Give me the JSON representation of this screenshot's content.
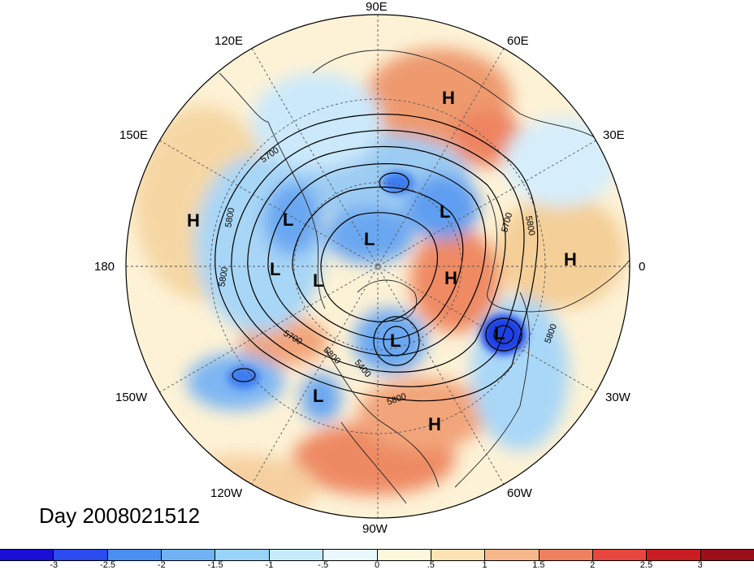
{
  "title": "Day 2008021512",
  "longitude_labels": {
    "lon_90E": "90E",
    "lon_60E": "60E",
    "lon_120E": "120E",
    "lon_150E": "150E",
    "lon_30E": "30E",
    "lon_180": "180",
    "lon_0": "0",
    "lon_150W": "150W",
    "lon_30W": "30W",
    "lon_120W": "120W",
    "lon_60W": "60W",
    "lon_90W": "90W"
  },
  "pressure_centers": [
    {
      "label": "H",
      "name": "high-asia"
    },
    {
      "label": "L",
      "name": "low-eastsiberia"
    },
    {
      "label": "L",
      "name": "low-central-asia"
    },
    {
      "label": "L",
      "name": "low-scandinavia"
    },
    {
      "label": "H",
      "name": "high-pacific"
    },
    {
      "label": "L",
      "name": "low-alaska-west"
    },
    {
      "label": "L",
      "name": "low-alaska-east"
    },
    {
      "label": "H",
      "name": "high-north-atlantic"
    },
    {
      "label": "H",
      "name": "high-africa"
    },
    {
      "label": "L",
      "name": "low-hudson"
    },
    {
      "label": "L",
      "name": "low-atlantic"
    },
    {
      "label": "L",
      "name": "low-california"
    },
    {
      "label": "H",
      "name": "high-gulf"
    }
  ],
  "contour_labels": [
    "5700",
    "5800",
    "5800",
    "5700",
    "5800",
    "5700",
    "5800",
    "5400",
    "5800",
    "5800"
  ],
  "colorbar": {
    "ticks": [
      "-3",
      "-2.5",
      "-2",
      "-1.5",
      "-1",
      "-.5",
      "0",
      ".5",
      "1",
      "1.5",
      "2",
      "2.5",
      "3"
    ],
    "colors": [
      "#1a0fd6",
      "#2a4bef",
      "#4a8ff2",
      "#6fb3f5",
      "#98d4f8",
      "#c6ecfb",
      "#e8f8fd",
      "#fdf7dc",
      "#fbe3b4",
      "#f6b88a",
      "#ef8060",
      "#e7473f",
      "#c91d22",
      "#9c0f19"
    ]
  }
}
